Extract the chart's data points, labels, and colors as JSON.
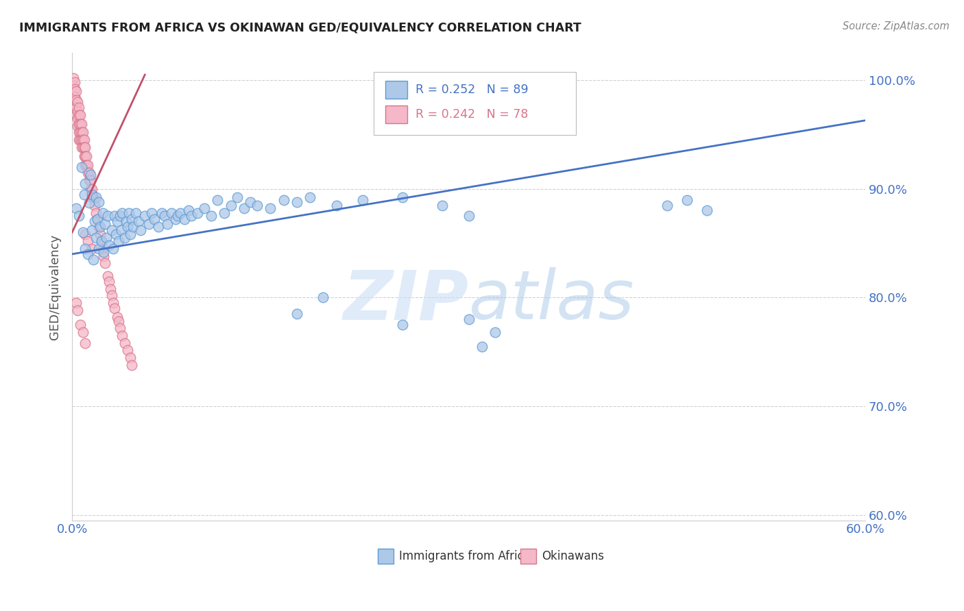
{
  "title": "IMMIGRANTS FROM AFRICA VS OKINAWAN GED/EQUIVALENCY CORRELATION CHART",
  "source": "Source: ZipAtlas.com",
  "ylabel": "GED/Equivalency",
  "xlim": [
    0.0,
    0.6
  ],
  "ylim": [
    0.595,
    1.025
  ],
  "yticks": [
    0.6,
    0.7,
    0.8,
    0.9,
    1.0
  ],
  "ytick_labels": [
    "60.0%",
    "70.0%",
    "80.0%",
    "90.0%",
    "100.0%"
  ],
  "xticks": [
    0.0,
    0.1,
    0.2,
    0.3,
    0.4,
    0.5,
    0.6
  ],
  "xtick_labels": [
    "0.0%",
    "",
    "",
    "",
    "",
    "",
    "60.0%"
  ],
  "blue_color": "#aec8e8",
  "blue_edge_color": "#5b9bd5",
  "pink_color": "#f4b8c8",
  "pink_edge_color": "#d9748a",
  "blue_line_color": "#4472c4",
  "pink_line_color": "#c0506a",
  "grid_color": "#d0d0d0",
  "watermark_zip_color": "#ccdff5",
  "watermark_atlas_color": "#a8c8e8",
  "blue_line_x0": 0.0,
  "blue_line_x1": 0.6,
  "blue_line_y0": 0.84,
  "blue_line_y1": 0.963,
  "pink_line_x0": 0.0,
  "pink_line_x1": 0.055,
  "pink_line_y0": 0.86,
  "pink_line_y1": 1.005,
  "blue_scatter_x": [
    0.003,
    0.005,
    0.007,
    0.008,
    0.009,
    0.01,
    0.01,
    0.012,
    0.013,
    0.014,
    0.015,
    0.015,
    0.016,
    0.017,
    0.018,
    0.018,
    0.019,
    0.02,
    0.02,
    0.021,
    0.022,
    0.023,
    0.024,
    0.025,
    0.026,
    0.027,
    0.028,
    0.03,
    0.031,
    0.032,
    0.033,
    0.034,
    0.035,
    0.036,
    0.037,
    0.038,
    0.04,
    0.041,
    0.042,
    0.043,
    0.044,
    0.045,
    0.046,
    0.048,
    0.05,
    0.052,
    0.055,
    0.058,
    0.06,
    0.062,
    0.065,
    0.068,
    0.07,
    0.072,
    0.075,
    0.078,
    0.08,
    0.082,
    0.085,
    0.088,
    0.09,
    0.095,
    0.1,
    0.105,
    0.11,
    0.115,
    0.12,
    0.125,
    0.13,
    0.135,
    0.14,
    0.15,
    0.16,
    0.17,
    0.18,
    0.2,
    0.22,
    0.25,
    0.28,
    0.3,
    0.17,
    0.19,
    0.25,
    0.3,
    0.31,
    0.32,
    0.45,
    0.465,
    0.48
  ],
  "blue_scatter_y": [
    0.882,
    0.875,
    0.92,
    0.86,
    0.895,
    0.845,
    0.905,
    0.84,
    0.887,
    0.913,
    0.862,
    0.895,
    0.835,
    0.87,
    0.855,
    0.892,
    0.872,
    0.845,
    0.888,
    0.865,
    0.852,
    0.878,
    0.842,
    0.868,
    0.855,
    0.875,
    0.848,
    0.862,
    0.845,
    0.875,
    0.858,
    0.87,
    0.852,
    0.875,
    0.862,
    0.878,
    0.855,
    0.87,
    0.865,
    0.878,
    0.858,
    0.872,
    0.865,
    0.878,
    0.87,
    0.862,
    0.875,
    0.868,
    0.878,
    0.872,
    0.865,
    0.878,
    0.875,
    0.868,
    0.878,
    0.872,
    0.875,
    0.878,
    0.872,
    0.88,
    0.875,
    0.878,
    0.882,
    0.875,
    0.89,
    0.878,
    0.885,
    0.892,
    0.882,
    0.888,
    0.885,
    0.882,
    0.89,
    0.888,
    0.892,
    0.885,
    0.89,
    0.892,
    0.885,
    0.875,
    0.785,
    0.8,
    0.775,
    0.78,
    0.755,
    0.768,
    0.885,
    0.89,
    0.88
  ],
  "pink_scatter_x": [
    0.001,
    0.001,
    0.002,
    0.002,
    0.002,
    0.003,
    0.003,
    0.003,
    0.003,
    0.004,
    0.004,
    0.004,
    0.004,
    0.005,
    0.005,
    0.005,
    0.005,
    0.005,
    0.006,
    0.006,
    0.006,
    0.006,
    0.007,
    0.007,
    0.007,
    0.007,
    0.008,
    0.008,
    0.008,
    0.009,
    0.009,
    0.009,
    0.01,
    0.01,
    0.01,
    0.011,
    0.011,
    0.012,
    0.012,
    0.013,
    0.013,
    0.014,
    0.014,
    0.015,
    0.015,
    0.016,
    0.017,
    0.018,
    0.019,
    0.02,
    0.021,
    0.022,
    0.023,
    0.024,
    0.025,
    0.027,
    0.028,
    0.029,
    0.03,
    0.031,
    0.032,
    0.034,
    0.035,
    0.036,
    0.038,
    0.04,
    0.042,
    0.044,
    0.045,
    0.01,
    0.012,
    0.015,
    0.003,
    0.004,
    0.006,
    0.008,
    0.01
  ],
  "pink_scatter_y": [
    1.002,
    0.995,
    0.998,
    0.992,
    0.985,
    0.99,
    0.982,
    0.975,
    0.968,
    0.98,
    0.972,
    0.965,
    0.958,
    0.975,
    0.968,
    0.96,
    0.952,
    0.945,
    0.968,
    0.96,
    0.952,
    0.945,
    0.96,
    0.952,
    0.945,
    0.938,
    0.952,
    0.945,
    0.938,
    0.945,
    0.938,
    0.93,
    0.938,
    0.93,
    0.922,
    0.93,
    0.922,
    0.922,
    0.915,
    0.915,
    0.908,
    0.908,
    0.9,
    0.9,
    0.892,
    0.892,
    0.885,
    0.878,
    0.872,
    0.865,
    0.858,
    0.852,
    0.845,
    0.838,
    0.832,
    0.82,
    0.815,
    0.808,
    0.802,
    0.795,
    0.79,
    0.782,
    0.778,
    0.772,
    0.765,
    0.758,
    0.752,
    0.745,
    0.738,
    0.858,
    0.852,
    0.845,
    0.795,
    0.788,
    0.775,
    0.768,
    0.758
  ]
}
